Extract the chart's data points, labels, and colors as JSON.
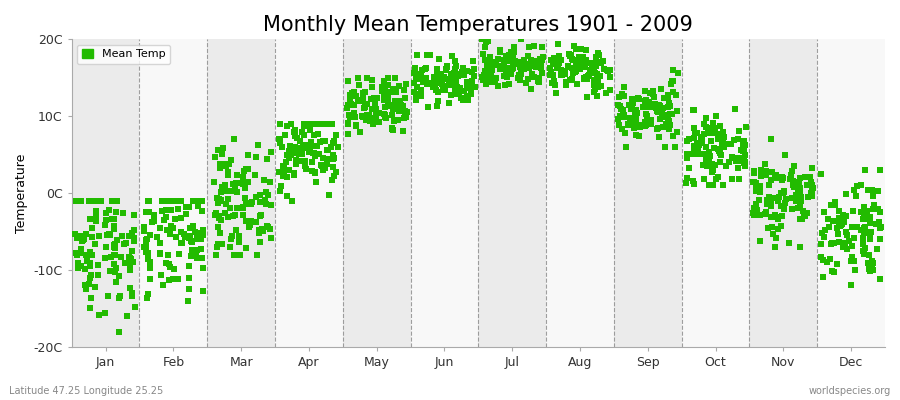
{
  "title": "Monthly Mean Temperatures 1901 - 2009",
  "ylabel": "Temperature",
  "xlabel": "",
  "subtitle_left": "Latitude 47.25 Longitude 25.25",
  "subtitle_right": "worldspecies.org",
  "ylim": [
    -20,
    20
  ],
  "yticks": [
    -20,
    -10,
    0,
    10,
    20
  ],
  "ytick_labels": [
    "-20C",
    "-10C",
    "0C",
    "10C",
    "20C"
  ],
  "month_names": [
    "Jan",
    "Feb",
    "Mar",
    "Apr",
    "May",
    "Jun",
    "Jul",
    "Aug",
    "Sep",
    "Oct",
    "Nov",
    "Dec"
  ],
  "dot_color": "#22bb00",
  "dot_size": 18,
  "dot_marker": "s",
  "background_color": "#ffffff",
  "plot_bg_color": "#ffffff",
  "band_color_even": "#ebebeb",
  "band_color_odd": "#f8f8f8",
  "title_fontsize": 15,
  "axis_fontsize": 9,
  "legend_label": "Mean Temp",
  "mean_temps_by_month": {
    "Jan": {
      "mean": -7.0,
      "std": 4.5,
      "min": -18.0,
      "max": -1.0
    },
    "Feb": {
      "mean": -6.0,
      "std": 4.0,
      "min": -17.0,
      "max": -1.0
    },
    "Mar": {
      "mean": -1.0,
      "std": 3.5,
      "min": -8.0,
      "max": 7.0
    },
    "Apr": {
      "mean": 5.5,
      "std": 2.5,
      "min": -1.0,
      "max": 9.0
    },
    "May": {
      "mean": 11.0,
      "std": 2.0,
      "min": 7.0,
      "max": 15.0
    },
    "Jun": {
      "mean": 14.5,
      "std": 1.5,
      "min": 11.0,
      "max": 18.0
    },
    "Jul": {
      "mean": 16.5,
      "std": 1.5,
      "min": 13.0,
      "max": 20.0
    },
    "Aug": {
      "mean": 16.0,
      "std": 1.5,
      "min": 12.0,
      "max": 20.0
    },
    "Sep": {
      "mean": 10.5,
      "std": 2.0,
      "min": 6.0,
      "max": 16.0
    },
    "Oct": {
      "mean": 5.5,
      "std": 2.0,
      "min": 1.0,
      "max": 11.0
    },
    "Nov": {
      "mean": -0.5,
      "std": 3.0,
      "min": -7.0,
      "max": 7.0
    },
    "Dec": {
      "mean": -4.5,
      "std": 3.5,
      "min": -12.0,
      "max": 3.0
    }
  },
  "n_years": 109
}
